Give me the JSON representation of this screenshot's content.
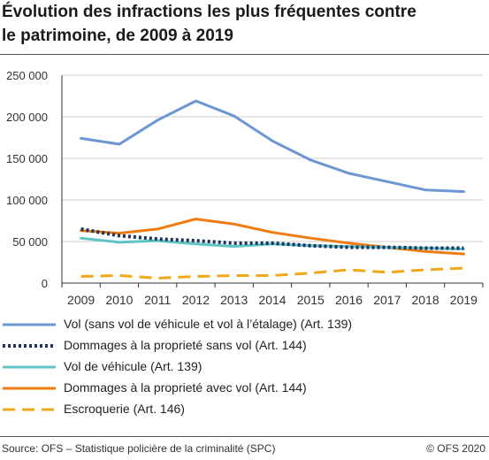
{
  "header": {
    "title_line1": "Évolution des infractions les plus fréquentes contre",
    "title_line2": "le patrimoine, de 2009 à 2019"
  },
  "chart_data": {
    "type": "line",
    "x": [
      2009,
      2010,
      2011,
      2012,
      2013,
      2014,
      2015,
      2016,
      2017,
      2018,
      2019
    ],
    "xlabel": "",
    "ylabel": "",
    "ylim": [
      0,
      250000
    ],
    "yticks": [
      0,
      50000,
      100000,
      150000,
      200000,
      250000
    ],
    "ytick_labels": [
      "0",
      "50 000",
      "100 000",
      "150 000",
      "200 000",
      "250 000"
    ],
    "grid": "horizontal",
    "legend_position": "bottom",
    "series": [
      {
        "name": "Vol (sans vol de véhicule et vol à l’étalage) (Art. 139)",
        "color": "#6c96d4",
        "style": "solid",
        "values": [
          174000,
          167000,
          196000,
          219000,
          201000,
          171000,
          148000,
          132000,
          122000,
          112000,
          110000
        ]
      },
      {
        "name": "Dommages à la proprieté sans vol (Art. 144)",
        "color": "#1d3461",
        "style": "dotted",
        "values": [
          65000,
          57000,
          53000,
          51000,
          48000,
          48000,
          45000,
          43000,
          43000,
          42000,
          42000
        ]
      },
      {
        "name": "Vol de véhicule (Art. 139)",
        "color": "#5ec4c4",
        "style": "solid",
        "values": [
          54000,
          49000,
          51000,
          47000,
          44000,
          47000,
          45000,
          44000,
          43000,
          42000,
          41000
        ]
      },
      {
        "name": "Dommages à la proprieté avec vol (Art. 144)",
        "color": "#f07b0f",
        "style": "solid",
        "values": [
          63000,
          60000,
          65000,
          77000,
          71000,
          61000,
          54000,
          48000,
          43000,
          38000,
          35000
        ]
      },
      {
        "name": "Escroquerie (Art. 146)",
        "color": "#f0a818",
        "style": "dashed",
        "values": [
          8000,
          9000,
          6000,
          8000,
          9000,
          9000,
          12000,
          16000,
          13000,
          16000,
          18000
        ]
      }
    ]
  },
  "footer": {
    "source": "Source: OFS – Statistique policière de la criminalité (SPC)",
    "copyright": "© OFS 2020"
  }
}
